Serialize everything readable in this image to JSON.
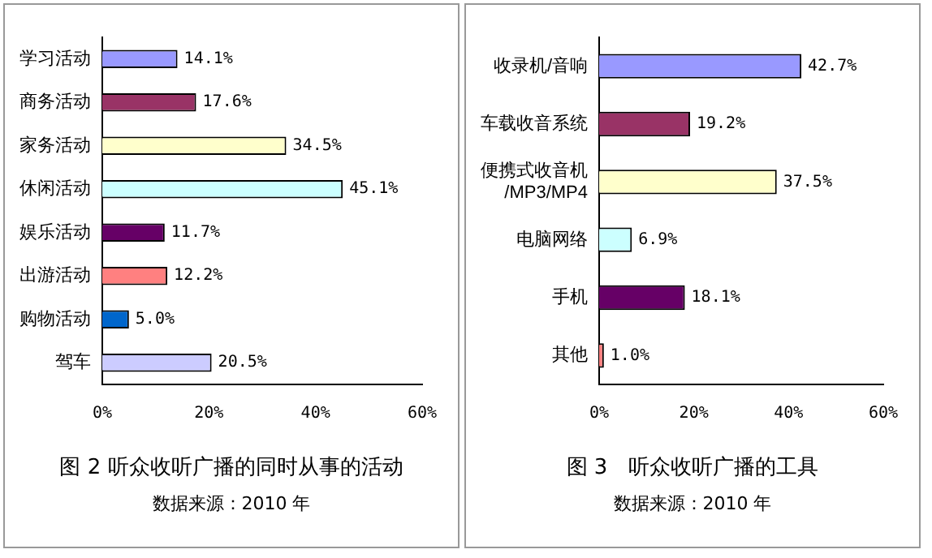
{
  "chart_data": [
    {
      "type": "bar",
      "orientation": "horizontal",
      "title": "图 2 听众收听广播的同时从事的活动",
      "categories": [
        "学习活动",
        "商务活动",
        "家务活动",
        "休闲活动",
        "娱乐活动",
        "出游活动",
        "购物活动",
        "驾车"
      ],
      "values": [
        14.1,
        17.6,
        34.5,
        45.1,
        11.7,
        12.2,
        5.0,
        20.5
      ],
      "value_labels": [
        "14.1%",
        "17.6%",
        "34.5%",
        "45.1%",
        "11.7%",
        "12.2%",
        "5.0%",
        "20.5%"
      ],
      "colors": [
        "#9999ff",
        "#993366",
        "#ffffcc",
        "#ccffff",
        "#660066",
        "#ff8080",
        "#0066cc",
        "#ccccff"
      ],
      "xlim": [
        0,
        60
      ],
      "xticks": [
        {
          "value": 0,
          "label": "0%"
        },
        {
          "value": 20,
          "label": "20%"
        },
        {
          "value": 40,
          "label": "40%"
        },
        {
          "value": 60,
          "label": "60%"
        }
      ],
      "grid": false,
      "legend": false,
      "annotations": [
        "数据来源：2010 年"
      ]
    },
    {
      "type": "bar",
      "orientation": "horizontal",
      "title": "图 3　听众收听广播的工具",
      "categories": [
        "收录机/音响",
        "车载收音系统",
        "便携式收音机/MP3/MP4",
        "电脑网络",
        "手机",
        "其他"
      ],
      "values": [
        42.7,
        19.2,
        37.5,
        6.9,
        18.1,
        1.0
      ],
      "value_labels": [
        "42.7%",
        "19.2%",
        "37.5%",
        "6.9%",
        "18.1%",
        "1.0%"
      ],
      "colors": [
        "#9999ff",
        "#993366",
        "#ffffcc",
        "#ccffff",
        "#660066",
        "#ff8080"
      ],
      "xlim": [
        0,
        60
      ],
      "xticks": [
        {
          "value": 0,
          "label": "0%"
        },
        {
          "value": 20,
          "label": "20%"
        },
        {
          "value": 40,
          "label": "40%"
        },
        {
          "value": 60,
          "label": "60%"
        }
      ],
      "grid": false,
      "legend": false,
      "annotations": [
        "数据来源：2010 年"
      ]
    }
  ]
}
